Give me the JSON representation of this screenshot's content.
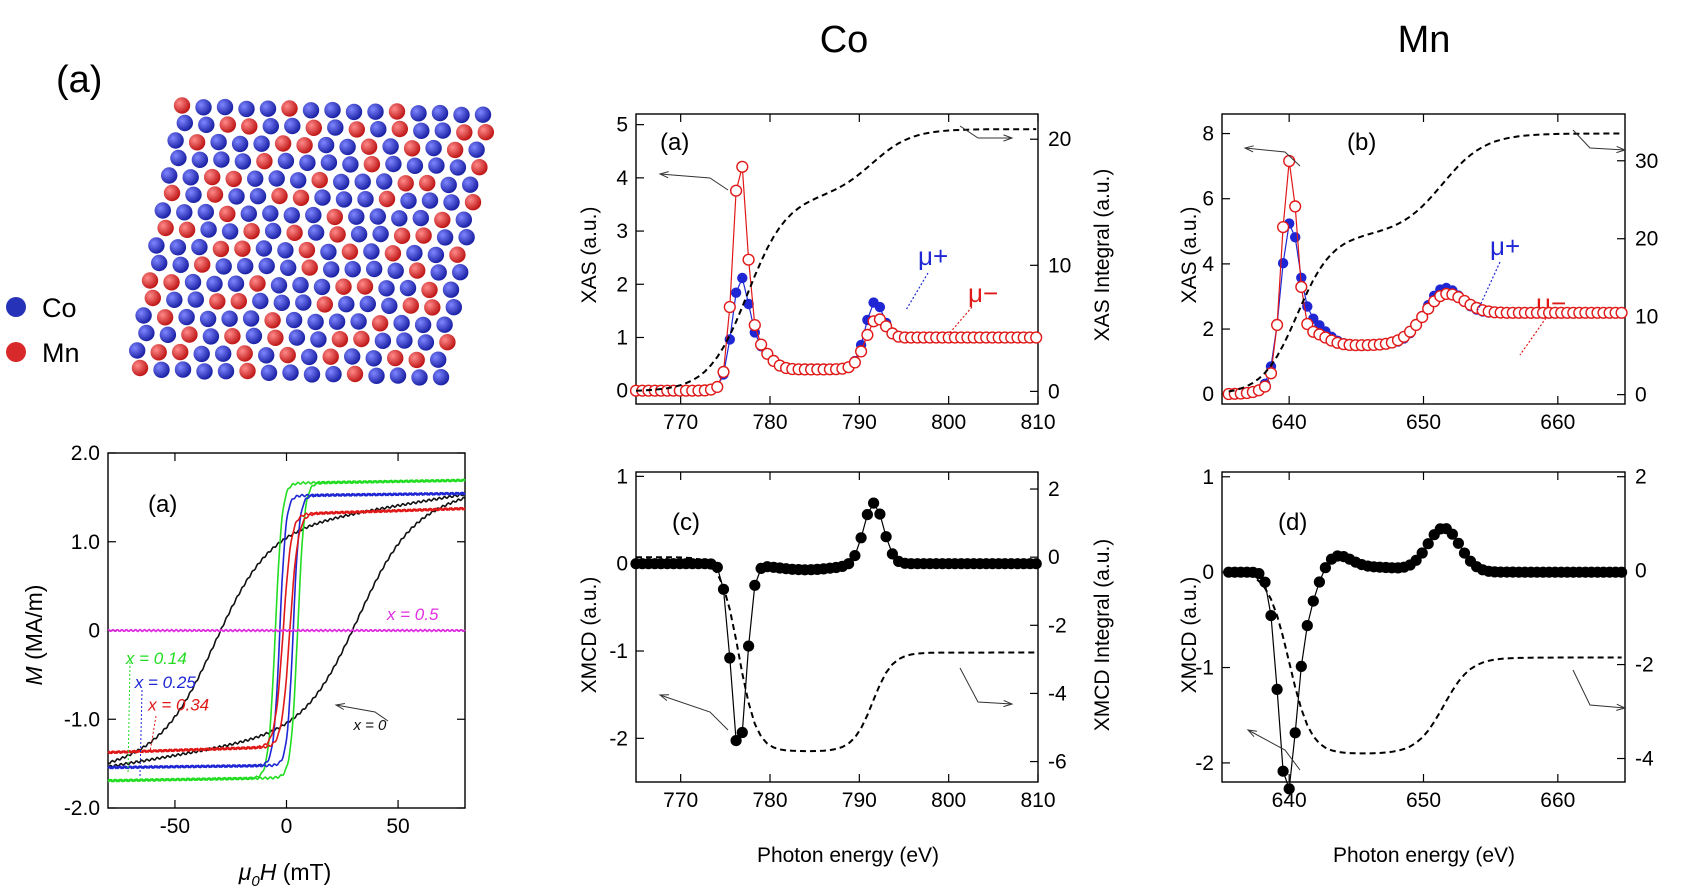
{
  "crystal": {
    "panel_label": "(a)",
    "legend": [
      {
        "label": "Co",
        "color": "#2632b8"
      },
      {
        "label": "Mn",
        "color": "#d82a2a"
      }
    ]
  },
  "chart_data": [
    {
      "id": "hysteresis",
      "type": "line",
      "panel_label": "(a)",
      "xlabel_italic": "μ",
      "xlabel_sub": "0",
      "xlabel_italic2": "H",
      "xlabel_rest": " (mT)",
      "ylabel_italic": "M",
      "ylabel_rest": " (MA/m)",
      "xlim": [
        -80,
        80
      ],
      "ylim": [
        -2,
        2
      ],
      "xticks": [
        -50,
        0,
        50
      ],
      "yticks": [
        -2,
        -1,
        0,
        1,
        2
      ],
      "ytick_labels": [
        "-2.0",
        "-1.0",
        "0",
        "1.0",
        "2.0"
      ],
      "grid": false,
      "series": [
        {
          "name": "x = 0",
          "color": "#111111",
          "hc": 32,
          "ms": 1.2,
          "hs": 80,
          "slope": 0.0042,
          "w": 3,
          "label_x": 30,
          "label_y": -1.12
        },
        {
          "name": "x = 0.14",
          "color": "#22dd22",
          "hc": 5,
          "ms": 1.66,
          "hs": 10,
          "slope": 0.0004,
          "w": 3,
          "label_x": -72,
          "label_y": -0.38
        },
        {
          "name": "x = 0.25",
          "color": "#1f27d4",
          "hc": 3,
          "ms": 1.52,
          "hs": 9,
          "slope": 0.0003,
          "w": 3,
          "label_x": -68,
          "label_y": -0.65
        },
        {
          "name": "x = 0.34",
          "color": "#e01818",
          "hc": 1.5,
          "ms": 1.31,
          "hs": 12,
          "slope": 0.0008,
          "w": 3,
          "label_x": -62,
          "label_y": -0.9
        },
        {
          "name": "x = 0.5",
          "color": "#e030e0",
          "hc": 0,
          "ms": 0.0,
          "hs": 1,
          "slope": 0,
          "w": 2,
          "label_x": 45,
          "label_y": 0.12
        }
      ]
    },
    {
      "id": "co_xas",
      "type": "scatter",
      "element_title": "Co",
      "panel_label": "(a)",
      "xlabel": "",
      "ylabel": "XAS (a.u.)",
      "ylabel_right": "XAS Integral (a.u.)",
      "xlim": [
        765,
        810
      ],
      "ylim": [
        -0.25,
        5.2
      ],
      "ylim_right": [
        -1,
        22
      ],
      "xticks": [
        770,
        780,
        790,
        800,
        810
      ],
      "yticks": [
        0,
        1,
        2,
        3,
        4,
        5
      ],
      "yticks_right": [
        0,
        10,
        20
      ],
      "x_start": 765,
      "x_end": 810,
      "x_step": 0.7,
      "series": [
        {
          "name": "μ+",
          "color": "#1f27d4",
          "filled": true,
          "peaks": [
            [
              776.6,
              1.6,
              0.9
            ],
            [
              778.2,
              0.45,
              1.6
            ],
            [
              791.6,
              0.9,
              1.0
            ]
          ],
          "edges": [
            [
              776.3,
              0.4,
              0.7
            ],
            [
              791.3,
              0.6,
              0.8
            ]
          ],
          "baseline_add": 0
        },
        {
          "name": "μ−",
          "color": "#e01818",
          "filled": false,
          "peaks": [
            [
              776.6,
              3.7,
              0.75
            ],
            [
              777.8,
              0.6,
              1.6
            ],
            [
              791.7,
              0.55,
              1.1
            ]
          ],
          "edges": [
            [
              776.3,
              0.4,
              0.7
            ],
            [
              791.3,
              0.6,
              0.8
            ]
          ],
          "baseline_add": 0
        }
      ],
      "integral": {
        "edges": [
          [
            777.5,
            15.5,
            2.2
          ],
          [
            791.5,
            5.3,
            2.2
          ]
        ]
      },
      "label_mu_plus": "μ+",
      "label_mu_minus": "μ−"
    },
    {
      "id": "co_xmcd",
      "type": "scatter",
      "panel_label": "(c)",
      "xlabel": "Photon energy (eV)",
      "ylabel": "XMCD (a.u.)",
      "ylabel_right": "XMCD Integral (a.u.)",
      "xlim": [
        765,
        810
      ],
      "ylim": [
        -2.5,
        1.05
      ],
      "ylim_right": [
        -6.6,
        2.5
      ],
      "xticks": [
        770,
        780,
        790,
        800,
        810
      ],
      "yticks": [
        -2,
        -1,
        0,
        1
      ],
      "yticks_right": [
        -6,
        -4,
        -2,
        0,
        2
      ],
      "x_start": 765,
      "x_end": 810,
      "x_step": 0.7,
      "peaks": [
        [
          776.5,
          -2.15,
          0.85
        ],
        [
          791.6,
          0.7,
          1.1
        ],
        [
          784,
          -0.07,
          3.5
        ]
      ],
      "integral": {
        "edges": [
          [
            776.5,
            -5.7,
            1.0
          ],
          [
            791.5,
            2.9,
            1.1
          ]
        ]
      }
    },
    {
      "id": "mn_xas",
      "type": "scatter",
      "element_title": "Mn",
      "panel_label": "(b)",
      "xlabel": "",
      "ylabel": "XAS (a.u.)",
      "ylabel_right": "",
      "xlim": [
        635,
        665
      ],
      "ylim": [
        -0.3,
        8.6
      ],
      "ylim_right": [
        -1.2,
        36
      ],
      "xticks": [
        640,
        650,
        660
      ],
      "yticks": [
        0,
        2,
        4,
        6,
        8
      ],
      "yticks_right": [
        0,
        10,
        20,
        30
      ],
      "x_start": 635.5,
      "x_end": 665,
      "x_step": 0.45,
      "series": [
        {
          "name": "μ+",
          "color": "#1f27d4",
          "filled": true,
          "peaks": [
            [
              640.0,
              3.8,
              0.65
            ],
            [
              641.1,
              1.1,
              1.3
            ],
            [
              651.3,
              1.1,
              1.3
            ]
          ],
          "edges": [
            [
              640.2,
              1.5,
              0.9
            ],
            [
              650.8,
              1.0,
              1.0
            ]
          ],
          "baseline_add": 0
        },
        {
          "name": "μ−",
          "color": "#e01818",
          "filled": false,
          "peaks": [
            [
              640.0,
              6.0,
              0.55
            ],
            [
              641.1,
              0.7,
              1.3
            ],
            [
              651.3,
              0.9,
              1.5
            ]
          ],
          "edges": [
            [
              640.2,
              1.5,
              0.9
            ],
            [
              650.8,
              1.0,
              1.0
            ]
          ],
          "baseline_add": 0
        }
      ],
      "integral": {
        "edges": [
          [
            640.6,
            20.5,
            1.3
          ],
          [
            651.4,
            13.0,
            1.6
          ]
        ]
      },
      "label_mu_plus": "μ+",
      "label_mu_minus": "μ−"
    },
    {
      "id": "mn_xmcd",
      "type": "scatter",
      "panel_label": "(d)",
      "xlabel": "Photon energy (eV)",
      "ylabel": "XMCD (a.u.)",
      "ylabel_right": "",
      "xlim": [
        635,
        665
      ],
      "ylim": [
        -2.2,
        1.05
      ],
      "ylim_right": [
        -4.5,
        2.1
      ],
      "xticks": [
        640,
        650,
        660
      ],
      "yticks": [
        -2,
        -1,
        0,
        1
      ],
      "yticks_right": [
        -4,
        -2,
        0,
        2
      ],
      "x_start": 635.5,
      "x_end": 665,
      "x_step": 0.45,
      "peaks": [
        [
          639.8,
          -2.1,
          0.65
        ],
        [
          641.0,
          -0.5,
          0.9
        ],
        [
          643.5,
          0.16,
          1.1
        ],
        [
          646.5,
          0.05,
          2.0
        ],
        [
          651.5,
          0.46,
          1.2
        ]
      ],
      "integral": {
        "edges": [
          [
            640.0,
            -3.9,
            0.8
          ],
          [
            651.5,
            2.05,
            1.0
          ]
        ]
      }
    }
  ]
}
